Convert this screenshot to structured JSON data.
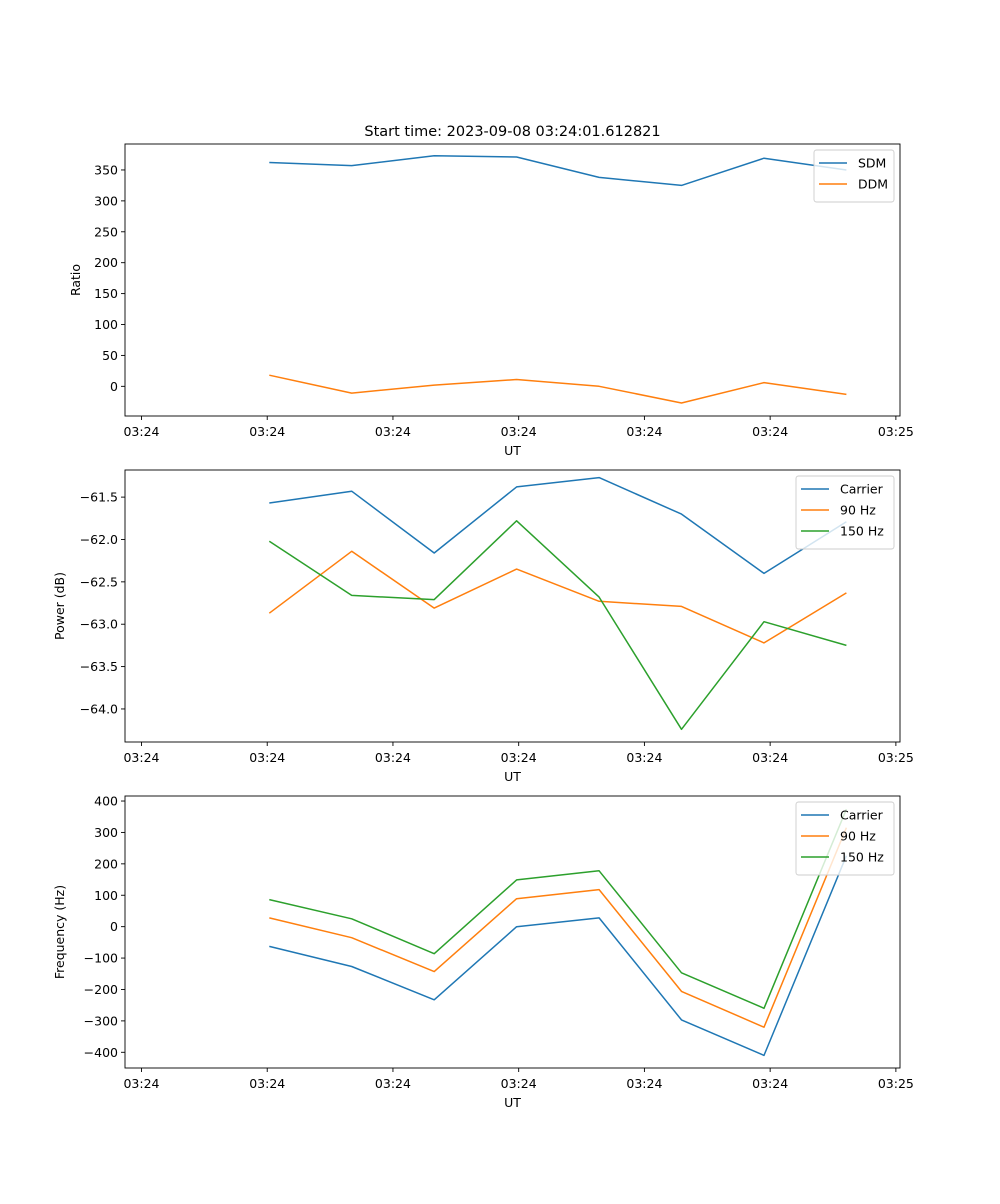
{
  "figure_title": "Start time: 2023-09-08 03:24:01.612821",
  "chart_data": [
    {
      "type": "line",
      "title": "Start time: 2023-09-08 03:24:01.612821",
      "xlabel": "UT",
      "ylabel": "Ratio",
      "x_tick_labels": [
        "03:24",
        "03:24",
        "03:24",
        "03:24",
        "03:24",
        "03:24",
        "03:25"
      ],
      "x": [
        1,
        2,
        3,
        4,
        5,
        6,
        7,
        8
      ],
      "xlim": [
        -0.75,
        8.65
      ],
      "ylim": [
        -48,
        392
      ],
      "y_ticks": [
        0,
        50,
        100,
        150,
        200,
        250,
        300,
        350
      ],
      "y_tick_labels": [
        "0",
        "50",
        "100",
        "150",
        "200",
        "250",
        "300",
        "350"
      ],
      "legend_position": "top-right",
      "grid": false,
      "series": [
        {
          "name": "SDM",
          "color": "#1f77b4",
          "values": [
            362,
            357,
            373,
            371,
            338,
            325,
            369,
            350
          ]
        },
        {
          "name": "DDM",
          "color": "#ff7f0e",
          "values": [
            18,
            -11,
            2,
            11,
            0,
            -27,
            6,
            -13
          ]
        }
      ]
    },
    {
      "type": "line",
      "title": "",
      "xlabel": "UT",
      "ylabel": "Power (dB)",
      "x_tick_labels": [
        "03:24",
        "03:24",
        "03:24",
        "03:24",
        "03:24",
        "03:24",
        "03:25"
      ],
      "x": [
        1,
        2,
        3,
        4,
        5,
        6,
        7,
        8
      ],
      "xlim": [
        -0.75,
        8.65
      ],
      "ylim": [
        -64.39,
        -61.18
      ],
      "y_ticks": [
        -64.0,
        -63.5,
        -63.0,
        -62.5,
        -62.0,
        -61.5
      ],
      "y_tick_labels": [
        "−64.0",
        "−63.5",
        "−63.0",
        "−62.5",
        "−62.0",
        "−61.5"
      ],
      "legend_position": "top-right",
      "grid": false,
      "series": [
        {
          "name": "Carrier",
          "color": "#1f77b4",
          "values": [
            -61.57,
            -61.43,
            -62.16,
            -61.38,
            -61.27,
            -61.7,
            -62.4,
            -61.79
          ]
        },
        {
          "name": "90 Hz",
          "color": "#ff7f0e",
          "values": [
            -62.87,
            -62.14,
            -62.81,
            -62.35,
            -62.73,
            -62.79,
            -63.22,
            -62.63
          ]
        },
        {
          "name": "150 Hz",
          "color": "#2ca02c",
          "values": [
            -62.02,
            -62.66,
            -62.71,
            -61.78,
            -62.68,
            -64.24,
            -62.97,
            -63.25
          ]
        }
      ]
    },
    {
      "type": "line",
      "title": "",
      "xlabel": "UT",
      "ylabel": "Frequency (Hz)",
      "x_tick_labels": [
        "03:24",
        "03:24",
        "03:24",
        "03:24",
        "03:24",
        "03:24",
        "03:25"
      ],
      "x": [
        1,
        2,
        3,
        4,
        5,
        6,
        7,
        8
      ],
      "xlim": [
        -0.75,
        8.65
      ],
      "ylim": [
        -450,
        416
      ],
      "y_ticks": [
        -400,
        -300,
        -200,
        -100,
        0,
        100,
        200,
        300,
        400
      ],
      "y_tick_labels": [
        "−400",
        "−300",
        "−200",
        "−100",
        "0",
        "100",
        "200",
        "300",
        "400"
      ],
      "legend_position": "top-right",
      "grid": false,
      "series": [
        {
          "name": "Carrier",
          "color": "#1f77b4",
          "values": [
            -63,
            -127,
            -233,
            0,
            28,
            -297,
            -410,
            226
          ]
        },
        {
          "name": "90 Hz",
          "color": "#ff7f0e",
          "values": [
            28,
            -35,
            -143,
            89,
            118,
            -206,
            -320,
            315
          ]
        },
        {
          "name": "150 Hz",
          "color": "#2ca02c",
          "values": [
            86,
            25,
            -86,
            149,
            178,
            -147,
            -260,
            374
          ]
        }
      ]
    }
  ]
}
